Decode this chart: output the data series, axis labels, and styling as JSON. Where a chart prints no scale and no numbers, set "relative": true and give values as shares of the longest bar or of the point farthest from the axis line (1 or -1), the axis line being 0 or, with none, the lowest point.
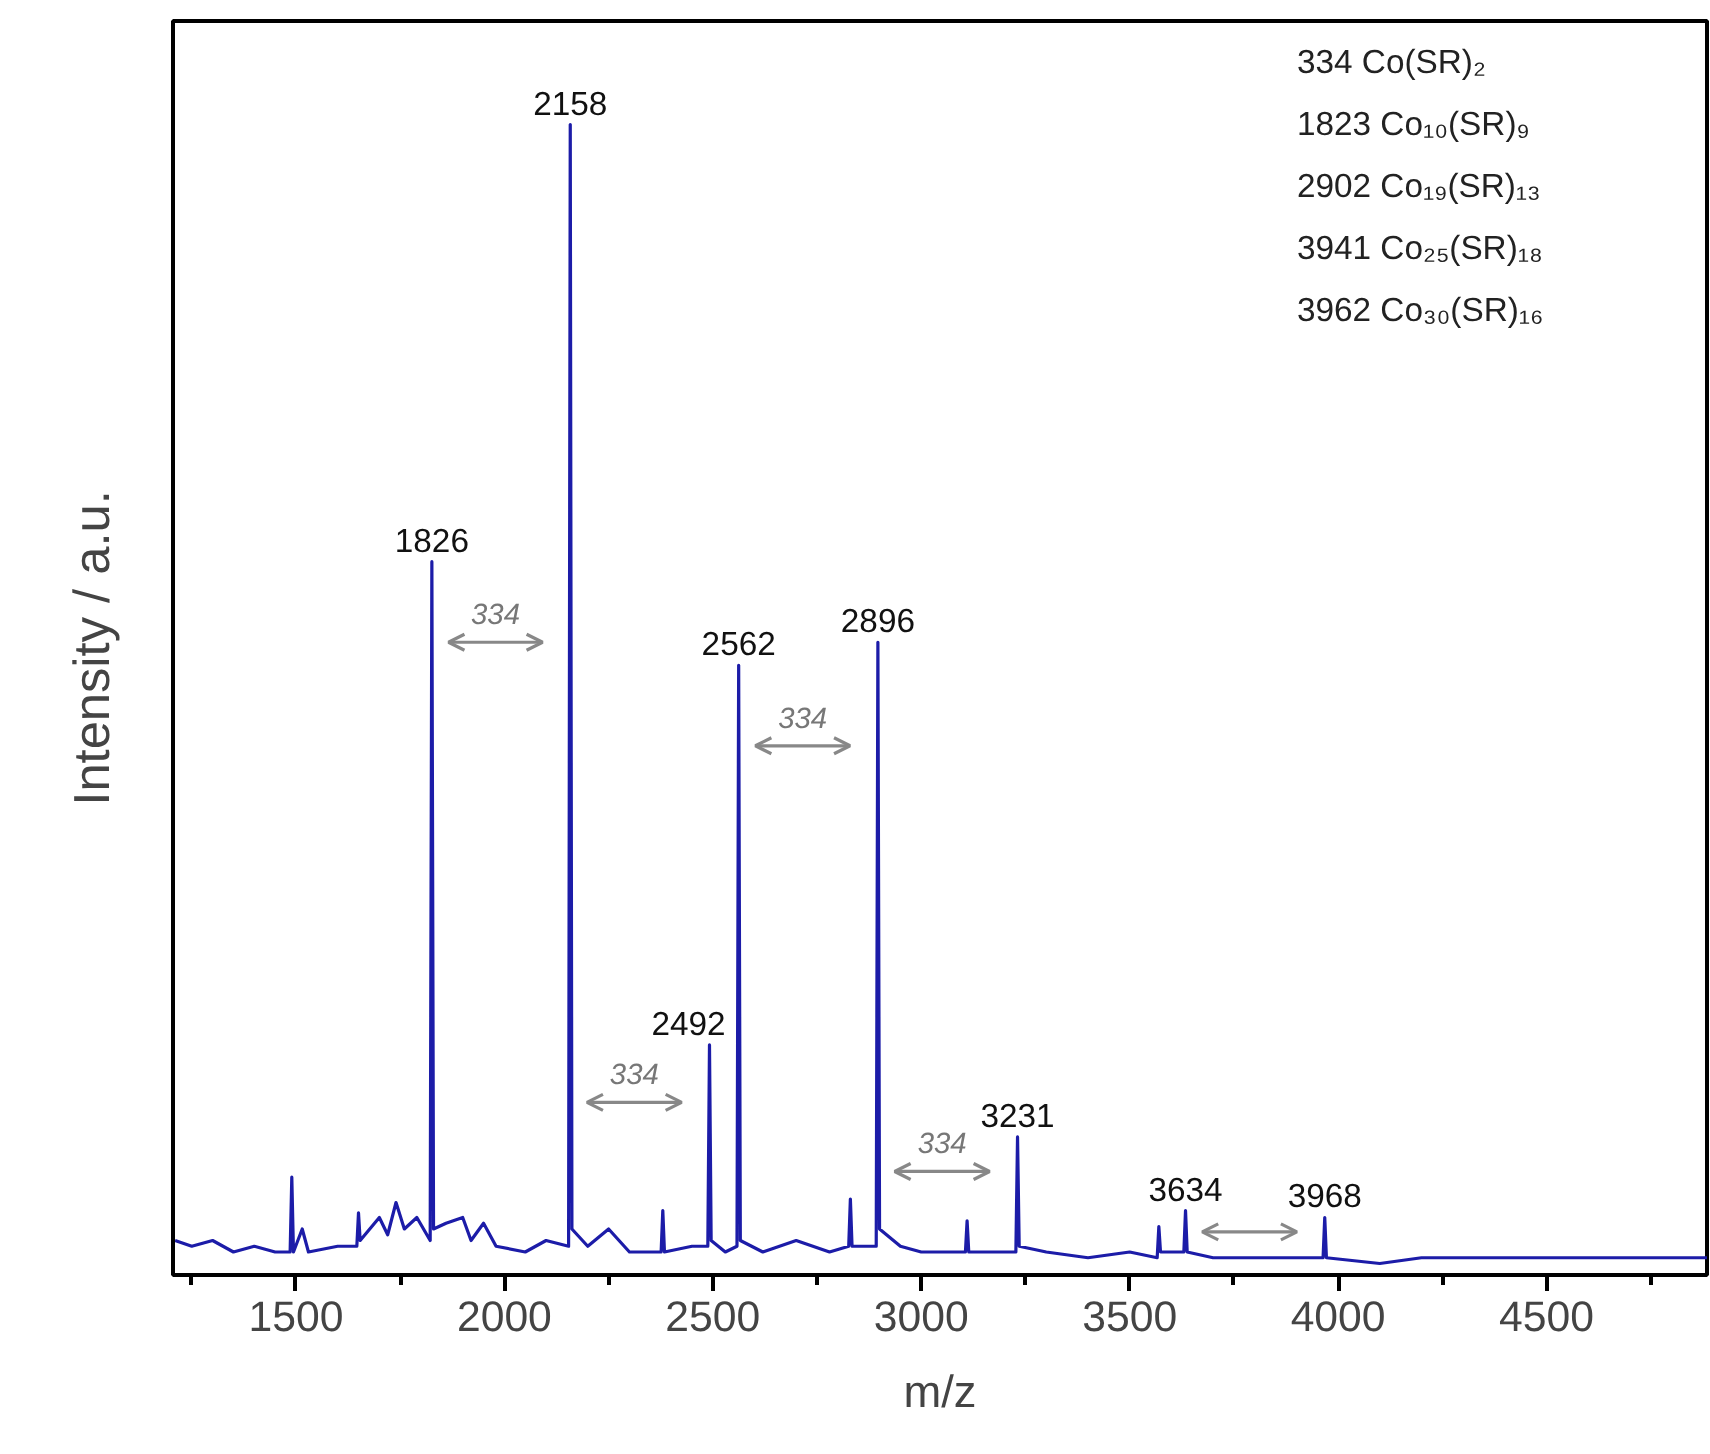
{
  "chart_data": {
    "type": "line",
    "relative": true,
    "xlabel": "m/z",
    "ylabel": "Intensity / a.u.",
    "xlim": [
      1205,
      4885
    ],
    "xticks": [
      1500,
      2000,
      2500,
      3000,
      3500,
      4000,
      4500
    ],
    "tick_labels": "x",
    "grid": false,
    "series": [
      {
        "color": "#1c1ca8",
        "x": [
          1210,
          1250,
          1300,
          1350,
          1400,
          1450,
          1486,
          1490,
          1494,
          1515,
          1530,
          1600,
          1646,
          1650,
          1654,
          1700,
          1720,
          1740,
          1760,
          1790,
          1822,
          1826,
          1830,
          1860,
          1900,
          1920,
          1950,
          1980,
          2050,
          2100,
          2154,
          2158,
          2162,
          2200,
          2250,
          2300,
          2376,
          2380,
          2384,
          2450,
          2488,
          2492,
          2496,
          2530,
          2558,
          2562,
          2566,
          2620,
          2700,
          2780,
          2826,
          2830,
          2834,
          2892,
          2896,
          2900,
          2950,
          3000,
          3106,
          3110,
          3114,
          3180,
          3227,
          3231,
          3235,
          3300,
          3400,
          3500,
          3566,
          3570,
          3574,
          3630,
          3634,
          3638,
          3700,
          3800,
          3964,
          3968,
          3972,
          4100,
          4200,
          4400,
          4600,
          4885
        ],
        "values": [
          0.03,
          0.025,
          0.03,
          0.02,
          0.025,
          0.02,
          0.02,
          0.085,
          0.02,
          0.04,
          0.02,
          0.025,
          0.025,
          0.054,
          0.03,
          0.05,
          0.035,
          0.063,
          0.04,
          0.05,
          0.03,
          0.62,
          0.04,
          0.045,
          0.05,
          0.03,
          0.045,
          0.025,
          0.02,
          0.03,
          0.025,
          1,
          0.04,
          0.025,
          0.04,
          0.02,
          0.02,
          0.056,
          0.02,
          0.025,
          0.025,
          0.2,
          0.03,
          0.02,
          0.025,
          0.53,
          0.03,
          0.02,
          0.03,
          0.02,
          0.025,
          0.066,
          0.025,
          0.025,
          0.55,
          0.04,
          0.025,
          0.02,
          0.02,
          0.047,
          0.02,
          0.02,
          0.02,
          0.12,
          0.025,
          0.02,
          0.015,
          0.02,
          0.015,
          0.042,
          0.02,
          0.02,
          0.056,
          0.02,
          0.015,
          0.015,
          0.015,
          0.05,
          0.015,
          0.01,
          0.015,
          0.015,
          0.015,
          0.015
        ]
      }
    ],
    "annotations": [
      {
        "text": "1826",
        "x": 1826,
        "y": 0.62
      },
      {
        "text": "2158",
        "x": 2158,
        "y": 1
      },
      {
        "text": "2492",
        "x": 2492,
        "y": 0.2
      },
      {
        "text": "2562",
        "x": 2562,
        "y": 0.53
      },
      {
        "text": "2896",
        "x": 2896,
        "y": 0.55
      },
      {
        "text": "3231",
        "x": 3231,
        "y": 0.12
      },
      {
        "text": "3634",
        "x": 3634,
        "y": 0.056
      },
      {
        "text": "3968",
        "x": 3968,
        "y": 0.05
      },
      "334",
      "334",
      "334",
      "334",
      "334  Co(SR)₂",
      "1823 Co₁₀(SR)₉",
      "2902 Co₁₉(SR)₁₃",
      "3941 Co₂₅(SR)₁₈",
      "3962 Co₃₀(SR)₁₆"
    ]
  }
}
